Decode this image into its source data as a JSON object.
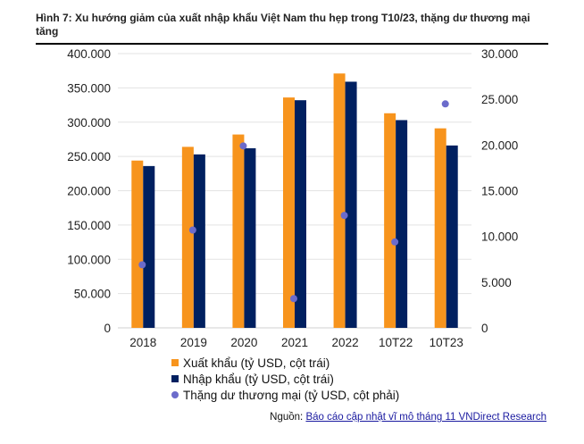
{
  "title": "Hình 7: Xu hướng giảm của xuất nhập khẩu Việt Nam thu hẹp trong T10/23, thặng dư thương mại tăng",
  "source_prefix": "Nguồn: ",
  "source_link": "Báo cáo cập nhật vĩ mô tháng 11 VNDirect Research",
  "chart_data": {
    "type": "bar",
    "categories": [
      "2018",
      "2019",
      "2020",
      "2021",
      "2022",
      "10T22",
      "10T23"
    ],
    "series": [
      {
        "name": "Xuất khẩu (tỷ USD, cột trái)",
        "type": "bar",
        "axis": "left",
        "color": "#F7941D",
        "values": [
          244,
          264,
          282,
          336,
          371,
          313,
          291
        ]
      },
      {
        "name": "Nhập khẩu (tỷ USD, cột trái)",
        "type": "bar",
        "axis": "left",
        "color": "#002060",
        "values": [
          236,
          253,
          262,
          332,
          359,
          303,
          266
        ]
      },
      {
        "name": "Thặng dư thương mại (tỷ USD, cột phải)",
        "type": "scatter",
        "axis": "right",
        "color": "#6B6BCB",
        "values": [
          6.9,
          10.7,
          19.9,
          3.2,
          12.3,
          9.4,
          24.5
        ]
      }
    ],
    "left_axis": {
      "ylim": [
        0,
        400000
      ],
      "ticks": [
        "0",
        "50.000",
        "100.000",
        "150.000",
        "200.000",
        "250.000",
        "300.000",
        "350.000",
        "400.000"
      ]
    },
    "right_axis": {
      "ylim": [
        0,
        30000
      ],
      "ticks": [
        "0",
        "5.000",
        "10.000",
        "15.000",
        "20.000",
        "25.000",
        "30.000"
      ]
    },
    "grid": true,
    "legend_position": "bottom"
  }
}
